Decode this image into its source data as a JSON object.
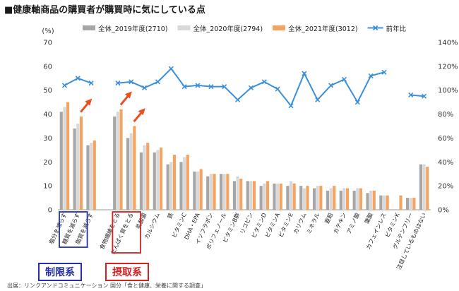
{
  "title": "■健康軸商品の購買者が購買時に気にしている点",
  "source_note": "出展：リンクアンドコミュニケーション 国分「食と健康、栄養に関する調査」",
  "group_labels": {
    "restrict": "制限系",
    "intake": "摂取系"
  },
  "chart_data": {
    "type": "bar",
    "title": "■健康軸商品の購買者が購買時に気にしている点",
    "y_unit": "(%)",
    "ylim": [
      0,
      70
    ],
    "ylim_right": [
      0,
      140
    ],
    "y_ticks": [
      0,
      10,
      20,
      30,
      40,
      50,
      60,
      70
    ],
    "y_right_ticks": [
      "0%",
      "20%",
      "40%",
      "60%",
      "80%",
      "100%",
      "120%",
      "140%"
    ],
    "grid": false,
    "legend_position": "top",
    "colors": [
      "#a6a6a6",
      "#d9d9d9",
      "#f4a460",
      "#3b8fd9"
    ],
    "categories": [
      "塩分を減らす",
      "糖質を減らす",
      "脂質を減らす",
      "",
      "食物繊維をとる",
      "たんぱく質をとる",
      "乳酸菌",
      "カルシウム",
      "鉄",
      "ビタミンC",
      "DHA・EPA",
      "イソフラボン",
      "ポリフェノール",
      "ビタミンB群",
      "リコピン",
      "ビタミンD",
      "ビタミンA",
      "ビタミンE",
      "カリウム",
      "ミネラル",
      "亜鉛",
      "カテキン",
      "アミノ酸",
      "葉酸",
      "カフェインレス",
      "ビタミンK",
      "グルテンフリー",
      "注目しているものはない"
    ],
    "series": [
      {
        "name": "全体_2019年度(2710)",
        "type": "bar",
        "values": [
          41,
          34,
          27,
          null,
          39,
          30,
          24,
          24,
          19,
          20,
          16,
          14,
          15,
          12,
          12,
          10,
          11,
          10,
          10,
          9,
          8,
          8,
          8,
          7,
          6,
          null,
          5,
          19
        ]
      },
      {
        "name": "全体_2020年度(2794)",
        "type": "bar",
        "values": [
          43,
          36,
          28,
          null,
          41,
          32,
          27,
          25,
          20,
          22,
          16,
          15,
          15,
          14,
          12,
          11,
          11,
          12,
          9,
          10,
          9,
          9,
          9,
          8,
          6,
          null,
          5,
          19
        ]
      },
      {
        "name": "全体_2021年度(3012)",
        "type": "bar",
        "values": [
          45,
          39,
          29,
          null,
          42,
          35,
          28,
          26,
          23,
          23,
          17,
          15,
          15,
          13,
          12,
          12,
          11,
          11,
          10,
          10,
          10,
          9,
          9,
          8,
          6,
          6,
          5,
          18
        ]
      },
      {
        "name": "前年比",
        "type": "line",
        "axis": "right",
        "values": [
          104,
          110,
          106,
          null,
          106,
          107,
          102,
          107,
          118,
          103,
          104,
          103,
          103,
          92,
          102,
          107,
          101,
          87,
          114,
          92,
          104,
          109,
          90,
          112,
          115,
          null,
          96,
          95
        ]
      }
    ],
    "annotations": [
      "制限系",
      "摂取系"
    ]
  }
}
